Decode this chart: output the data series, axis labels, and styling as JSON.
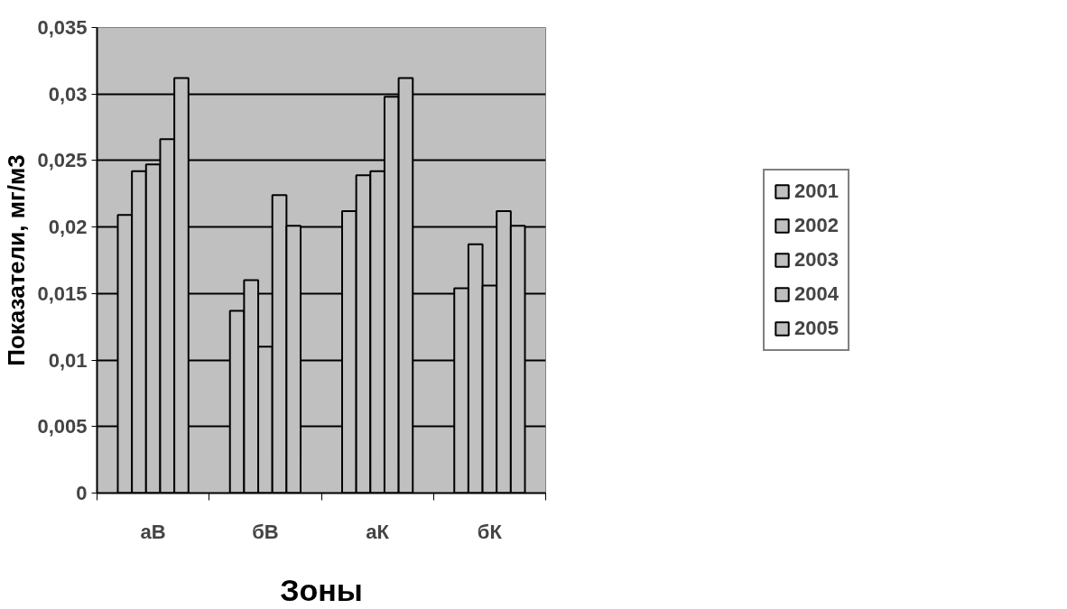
{
  "chart_data": {
    "type": "bar",
    "xlabel": "Зоны",
    "ylabel": "Показатели, мг/м3",
    "categories": [
      "аВ",
      "бВ",
      "аК",
      "бК"
    ],
    "series": [
      {
        "name": "2001",
        "color": "#c0c0c0",
        "values": [
          0.0209,
          0.0137,
          0.0212,
          0.0154
        ]
      },
      {
        "name": "2002",
        "color": "#c0c0c0",
        "values": [
          0.0242,
          0.016,
          0.0239,
          0.0187
        ]
      },
      {
        "name": "2003",
        "color": "#c0c0c0",
        "values": [
          0.0247,
          0.011,
          0.0242,
          0.0156
        ]
      },
      {
        "name": "2004",
        "color": "#c0c0c0",
        "values": [
          0.0266,
          0.0224,
          0.0298,
          0.0212
        ]
      },
      {
        "name": "2005",
        "color": "#c0c0c0",
        "values": [
          0.0312,
          0.0201,
          0.0312,
          0.0201
        ]
      }
    ],
    "ylim": [
      0,
      0.035
    ],
    "yticks": [
      0,
      {
        "value": 0.005,
        "label": "0,005"
      },
      {
        "value": 0.01,
        "label": "0,01"
      },
      {
        "value": 0.015,
        "label": "0,015"
      },
      {
        "value": 0.02,
        "label": "0,02"
      },
      {
        "value": 0.025,
        "label": "0,025"
      },
      {
        "value": 0.03,
        "label": "0,03"
      },
      {
        "value": 0.035,
        "label": "0,035"
      }
    ],
    "grid": "y",
    "legend": "right"
  }
}
